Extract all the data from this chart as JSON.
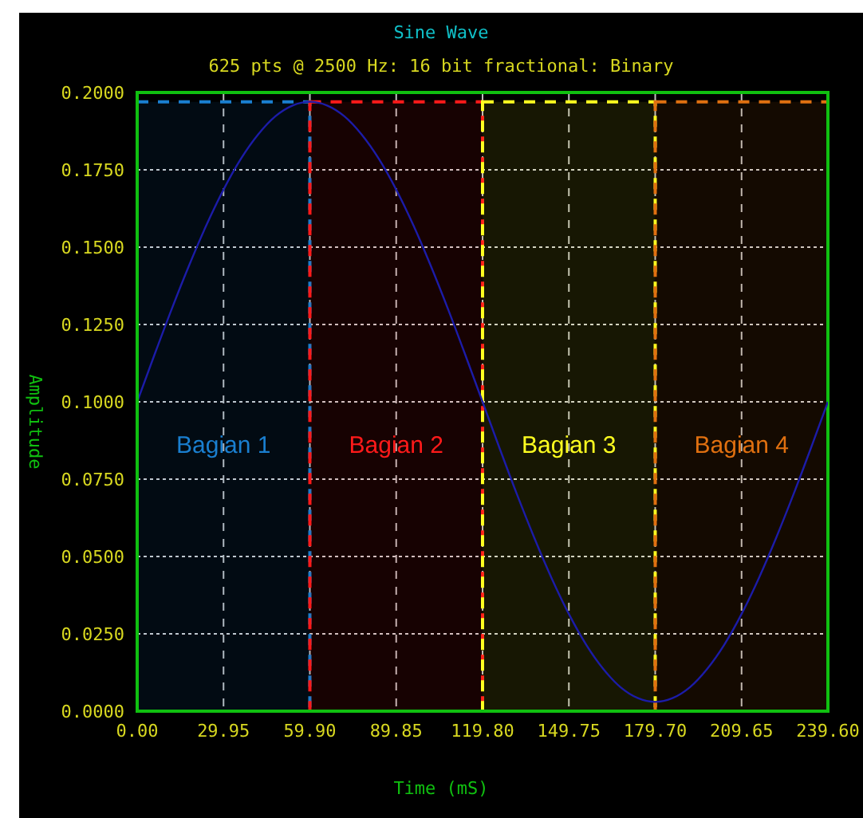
{
  "chart_data": {
    "type": "line",
    "title": "Sine Wave",
    "subtitle": "625 pts @ 2500 Hz: 16 bit fractional: Binary",
    "xlabel": "Time (mS)",
    "ylabel": "Amplitude",
    "x": [
      0,
      5.99,
      11.98,
      17.97,
      23.96,
      29.95,
      35.94,
      41.93,
      47.92,
      53.91,
      59.9,
      65.89,
      71.88,
      77.87,
      83.86,
      89.85,
      95.84,
      101.83,
      107.82,
      113.81,
      119.8,
      125.79,
      131.78,
      137.77,
      143.76,
      149.75,
      155.74,
      161.73,
      167.72,
      173.71,
      179.7,
      185.69,
      191.68,
      197.67,
      203.66,
      209.65,
      215.64,
      221.63,
      227.62,
      233.61,
      239.6
    ],
    "series": [
      {
        "color": "#1c1ca8",
        "values": [
          0.1,
          0.1152,
          0.13,
          0.144,
          0.157,
          0.1686,
          0.1785,
          0.1864,
          0.1923,
          0.1958,
          0.197,
          0.1958,
          0.1923,
          0.1864,
          0.1785,
          0.1686,
          0.157,
          0.144,
          0.13,
          0.1152,
          0.1,
          0.0848,
          0.07,
          0.056,
          0.043,
          0.0314,
          0.0215,
          0.0136,
          0.0077,
          0.0042,
          0.003,
          0.0042,
          0.0077,
          0.0136,
          0.0215,
          0.0314,
          0.043,
          0.056,
          0.07,
          0.0848,
          0.1
        ]
      }
    ],
    "xlim": [
      0,
      239.6
    ],
    "xticks": [
      {
        "value": 0,
        "label": "0.00"
      },
      29.95,
      {
        "value": 59.9,
        "label": "59.90"
      },
      89.85,
      {
        "value": 119.8,
        "label": "119.80"
      },
      149.75,
      {
        "value": 179.7,
        "label": "179.70"
      },
      209.65,
      {
        "value": 239.6,
        "label": "239.60"
      }
    ],
    "ylim": [
      0,
      0.2
    ],
    "yticks": [
      {
        "value": 0,
        "label": "0.0000"
      },
      {
        "value": 0.025,
        "label": "0.0250"
      },
      {
        "value": 0.05,
        "label": "0.0500"
      },
      {
        "value": 0.075,
        "label": "0.0750"
      },
      {
        "value": 0.1,
        "label": "0.1000"
      },
      {
        "value": 0.125,
        "label": "0.1250"
      },
      {
        "value": 0.15,
        "label": "0.1500"
      },
      {
        "value": 0.175,
        "label": "0.1750"
      },
      {
        "value": 0.2,
        "label": "0.2000"
      }
    ],
    "bands": [
      {
        "axis": "x",
        "from": 0,
        "to": 59.9,
        "label": "Bagian 1",
        "color": "#1a7fd0"
      },
      {
        "axis": "x",
        "from": 59.9,
        "to": 119.8,
        "label": "Bagian 2",
        "color": "#ff1a1a"
      },
      {
        "axis": "x",
        "from": 119.8,
        "to": 179.7,
        "label": "Bagian 3",
        "color": "#ffff20"
      },
      {
        "axis": "x",
        "from": 179.7,
        "to": 239.6,
        "label": "Bagian 4",
        "color": "#e07010"
      }
    ],
    "grid": true,
    "marker": "none",
    "line_style": "solid"
  }
}
